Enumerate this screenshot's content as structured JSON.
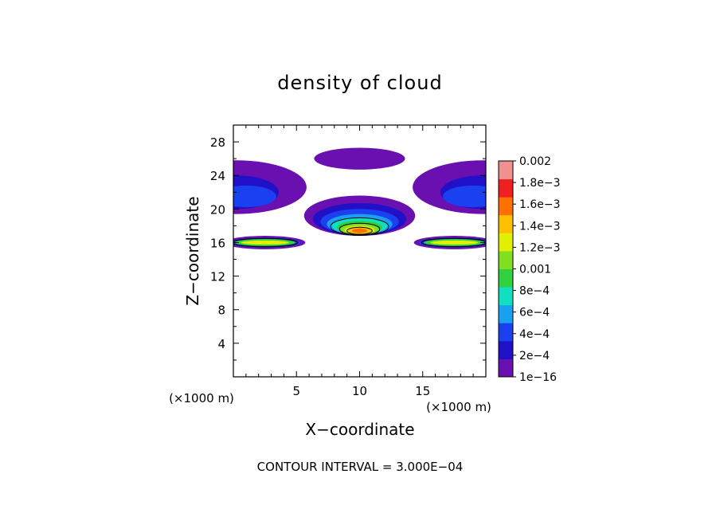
{
  "chart_data": {
    "type": "contour",
    "title": "density of cloud",
    "xlabel": "X−coordinate",
    "ylabel": "Z−coordinate",
    "x_unit_left": "(×1000 m)",
    "x_unit_right": "(×1000 m)",
    "footer": "CONTOUR INTERVAL = 3.000E−04",
    "xlim": [
      0,
      20
    ],
    "ylim": [
      0,
      30
    ],
    "x_ticks": [
      {
        "v": 5,
        "label": "5"
      },
      {
        "v": 10,
        "label": "10"
      },
      {
        "v": 15,
        "label": "15"
      }
    ],
    "y_ticks": [
      {
        "v": 4,
        "label": "4"
      },
      {
        "v": 8,
        "label": "8"
      },
      {
        "v": 12,
        "label": "12"
      },
      {
        "v": 16,
        "label": "16"
      },
      {
        "v": 20,
        "label": "20"
      },
      {
        "v": 24,
        "label": "24"
      },
      {
        "v": 28,
        "label": "28"
      }
    ],
    "colorbar": {
      "labels": [
        "1e−16",
        "2e−4",
        "4e−4",
        "6e−4",
        "8e−4",
        "0.001",
        "1.2e−3",
        "1.4e−3",
        "1.6e−3",
        "1.8e−3",
        "0.002"
      ],
      "colors": [
        "#6a0fb0",
        "#2010c8",
        "#1a40f0",
        "#1aa0f0",
        "#10e0c0",
        "#30d040",
        "#80e020",
        "#e0f000",
        "#ffc000",
        "#ff7000",
        "#f02020",
        "#f09090"
      ]
    }
  }
}
